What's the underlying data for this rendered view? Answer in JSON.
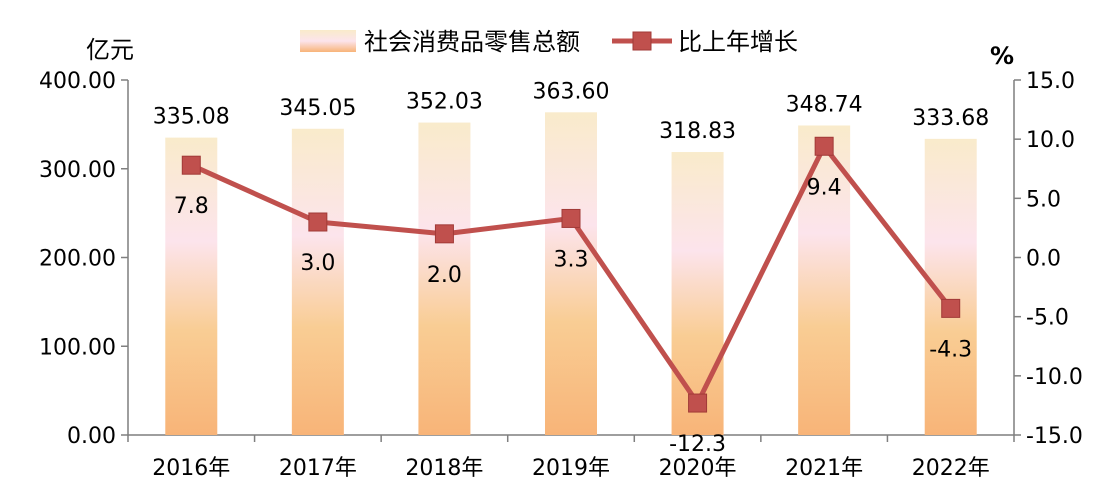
{
  "chart_data": {
    "type": "bar+line",
    "categories": [
      "2016年",
      "2017年",
      "2018年",
      "2019年",
      "2020年",
      "2021年",
      "2022年"
    ],
    "series": [
      {
        "name": "社会消费品零售总额",
        "type": "bar",
        "axis": "left",
        "values": [
          335.08,
          345.05,
          352.03,
          363.6,
          318.83,
          348.74,
          333.68
        ],
        "labels": [
          "335.08",
          "345.05",
          "352.03",
          "363.60",
          "318.83",
          "348.74",
          "333.68"
        ]
      },
      {
        "name": "比上年增长",
        "type": "line",
        "axis": "right",
        "values": [
          7.8,
          3.0,
          2.0,
          3.3,
          -12.3,
          9.4,
          -4.3
        ],
        "labels": [
          "7.8",
          "3.0",
          "2.0",
          "3.3",
          "-12.3",
          "9.4",
          "-4.3"
        ]
      }
    ],
    "left_axis": {
      "unit": "亿元",
      "ylim": [
        0,
        400
      ],
      "ticks": [
        0,
        100,
        200,
        300,
        400
      ],
      "tick_labels": [
        "0.00",
        "100.00",
        "200.00",
        "300.00",
        "400.00"
      ]
    },
    "right_axis": {
      "unit": "%",
      "ylim": [
        -15,
        15
      ],
      "ticks": [
        -15,
        -10,
        -5,
        0,
        5,
        10,
        15
      ],
      "tick_labels": [
        "-15.0",
        "-10.0",
        "-5.0",
        "0.0",
        "5.0",
        "10.0",
        "15.0"
      ]
    },
    "legend_position": "top",
    "colors": {
      "bar_top": "#F9EBCB",
      "bar_mid": "#FCE4EC",
      "bar_bottom": "#F8B478",
      "line": "#C0504D",
      "axis": "#7F7F7F"
    }
  }
}
